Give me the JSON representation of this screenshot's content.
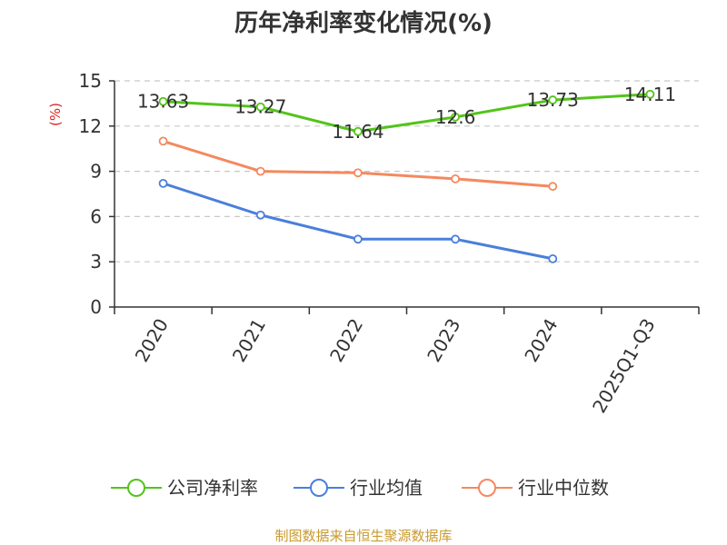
{
  "chart_data": {
    "type": "line",
    "title": "历年净利率变化情况(%)",
    "ylabel": "(%)",
    "xlabel": "",
    "categories": [
      "2020",
      "2021",
      "2022",
      "2023",
      "2024",
      "2025Q1-Q3"
    ],
    "ylim": [
      0,
      15
    ],
    "yticks": [
      0,
      3,
      6,
      9,
      12,
      15
    ],
    "grid": true,
    "legend_position": "bottom",
    "series": [
      {
        "name": "公司净利率",
        "color": "#52c41a",
        "values": [
          13.63,
          13.27,
          11.64,
          12.6,
          13.73,
          14.11
        ],
        "labels": [
          "13.63",
          "13.27",
          "11.64",
          "12.6",
          "13.73",
          "14.11"
        ]
      },
      {
        "name": "行业均值",
        "color": "#4a7fdb",
        "values": [
          8.2,
          6.1,
          4.5,
          4.5,
          3.2,
          null
        ]
      },
      {
        "name": "行业中位数",
        "color": "#f4895f",
        "values": [
          11.0,
          9.0,
          8.9,
          8.5,
          8.0,
          null
        ]
      }
    ]
  },
  "source_text": "制图数据来自恒生聚源数据库",
  "source_color": "#c99a2e",
  "ylabel_color": "#e02020"
}
